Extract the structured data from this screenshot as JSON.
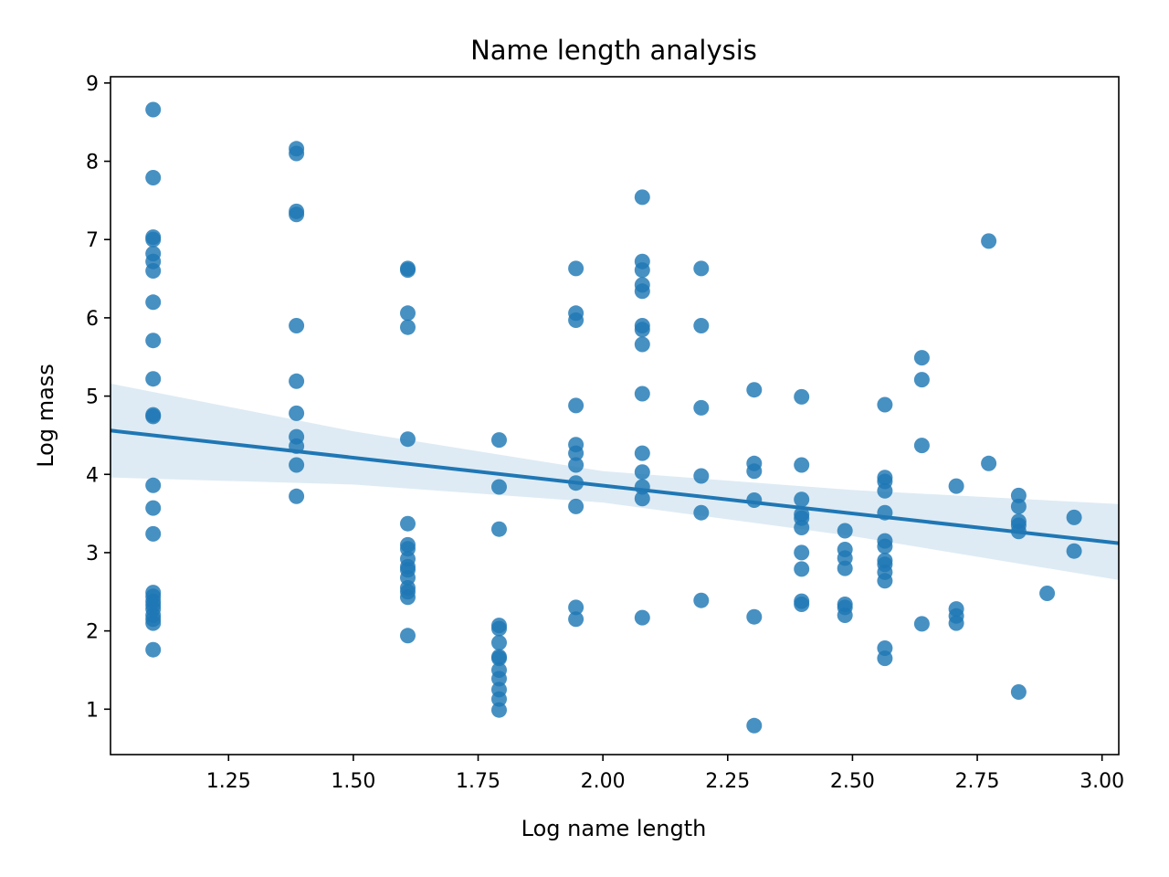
{
  "chart_data": {
    "type": "scatter",
    "title": "Name length analysis",
    "xlabel": "Log name length",
    "ylabel": "Log mass",
    "xlim": [
      1.0135,
      3.0335
    ],
    "ylim": [
      0.42,
      9.08
    ],
    "xticks": [
      "1.25",
      "1.50",
      "1.75",
      "2.00",
      "2.25",
      "2.50",
      "2.75",
      "3.00"
    ],
    "yticks": [
      "1",
      "2",
      "3",
      "4",
      "5",
      "6",
      "7",
      "8",
      "9"
    ],
    "grid": false,
    "colors": {
      "points": "#1f77b4",
      "line": "#1f77b4",
      "band": "#1f77b4"
    },
    "regression": {
      "x": [
        1.0135,
        3.0335
      ],
      "y": [
        4.56,
        3.12
      ]
    },
    "confidence_band": {
      "x": [
        1.0135,
        1.5,
        2.0,
        2.5,
        3.0335
      ],
      "upper": [
        5.16,
        4.55,
        4.04,
        3.8,
        3.62
      ],
      "lower": [
        3.96,
        3.87,
        3.64,
        3.21,
        2.65
      ]
    },
    "points": [
      [
        1.099,
        8.66
      ],
      [
        1.099,
        7.79
      ],
      [
        1.099,
        7.03
      ],
      [
        1.099,
        7.0
      ],
      [
        1.099,
        6.82
      ],
      [
        1.099,
        6.72
      ],
      [
        1.099,
        6.6
      ],
      [
        1.099,
        6.2
      ],
      [
        1.099,
        5.71
      ],
      [
        1.099,
        5.22
      ],
      [
        1.099,
        4.76
      ],
      [
        1.099,
        4.74
      ],
      [
        1.099,
        3.86
      ],
      [
        1.099,
        3.57
      ],
      [
        1.099,
        3.24
      ],
      [
        1.099,
        2.49
      ],
      [
        1.099,
        2.44
      ],
      [
        1.099,
        2.38
      ],
      [
        1.099,
        2.33
      ],
      [
        1.099,
        2.28
      ],
      [
        1.099,
        2.2
      ],
      [
        1.099,
        2.15
      ],
      [
        1.099,
        2.1
      ],
      [
        1.099,
        1.76
      ],
      [
        1.386,
        8.16
      ],
      [
        1.386,
        8.1
      ],
      [
        1.386,
        7.36
      ],
      [
        1.386,
        7.32
      ],
      [
        1.386,
        5.9
      ],
      [
        1.386,
        5.19
      ],
      [
        1.386,
        4.78
      ],
      [
        1.386,
        4.48
      ],
      [
        1.386,
        4.36
      ],
      [
        1.386,
        4.12
      ],
      [
        1.386,
        3.72
      ],
      [
        1.609,
        6.63
      ],
      [
        1.609,
        6.61
      ],
      [
        1.609,
        6.06
      ],
      [
        1.609,
        5.88
      ],
      [
        1.609,
        4.45
      ],
      [
        1.609,
        3.37
      ],
      [
        1.609,
        3.1
      ],
      [
        1.609,
        3.05
      ],
      [
        1.609,
        2.92
      ],
      [
        1.609,
        2.82
      ],
      [
        1.609,
        2.78
      ],
      [
        1.609,
        2.68
      ],
      [
        1.609,
        2.55
      ],
      [
        1.609,
        2.5
      ],
      [
        1.609,
        2.43
      ],
      [
        1.609,
        1.94
      ],
      [
        1.792,
        4.44
      ],
      [
        1.792,
        3.84
      ],
      [
        1.792,
        3.3
      ],
      [
        1.792,
        2.07
      ],
      [
        1.792,
        2.03
      ],
      [
        1.792,
        1.85
      ],
      [
        1.792,
        1.67
      ],
      [
        1.792,
        1.65
      ],
      [
        1.792,
        1.5
      ],
      [
        1.792,
        1.39
      ],
      [
        1.792,
        1.25
      ],
      [
        1.792,
        1.13
      ],
      [
        1.792,
        0.99
      ],
      [
        1.946,
        6.63
      ],
      [
        1.946,
        6.06
      ],
      [
        1.946,
        5.97
      ],
      [
        1.946,
        4.88
      ],
      [
        1.946,
        4.38
      ],
      [
        1.946,
        4.27
      ],
      [
        1.946,
        4.12
      ],
      [
        1.946,
        3.89
      ],
      [
        1.946,
        3.59
      ],
      [
        1.946,
        2.3
      ],
      [
        1.946,
        2.15
      ],
      [
        2.079,
        7.54
      ],
      [
        2.079,
        6.72
      ],
      [
        2.079,
        6.61
      ],
      [
        2.079,
        6.42
      ],
      [
        2.079,
        6.34
      ],
      [
        2.079,
        5.9
      ],
      [
        2.079,
        5.85
      ],
      [
        2.079,
        5.66
      ],
      [
        2.079,
        5.03
      ],
      [
        2.079,
        4.27
      ],
      [
        2.079,
        4.03
      ],
      [
        2.079,
        3.84
      ],
      [
        2.079,
        3.69
      ],
      [
        2.079,
        2.17
      ],
      [
        2.197,
        6.63
      ],
      [
        2.197,
        5.9
      ],
      [
        2.197,
        4.85
      ],
      [
        2.197,
        3.98
      ],
      [
        2.197,
        3.51
      ],
      [
        2.197,
        2.39
      ],
      [
        2.303,
        5.08
      ],
      [
        2.303,
        4.14
      ],
      [
        2.303,
        4.04
      ],
      [
        2.303,
        3.67
      ],
      [
        2.303,
        2.18
      ],
      [
        2.303,
        0.79
      ],
      [
        2.398,
        4.99
      ],
      [
        2.398,
        4.12
      ],
      [
        2.398,
        3.68
      ],
      [
        2.398,
        3.49
      ],
      [
        2.398,
        3.44
      ],
      [
        2.398,
        3.32
      ],
      [
        2.398,
        3.0
      ],
      [
        2.398,
        2.79
      ],
      [
        2.398,
        2.38
      ],
      [
        2.398,
        2.34
      ],
      [
        2.485,
        3.28
      ],
      [
        2.485,
        3.04
      ],
      [
        2.485,
        2.93
      ],
      [
        2.485,
        2.8
      ],
      [
        2.485,
        2.34
      ],
      [
        2.485,
        2.3
      ],
      [
        2.485,
        2.2
      ],
      [
        2.565,
        4.89
      ],
      [
        2.565,
        3.96
      ],
      [
        2.565,
        3.91
      ],
      [
        2.565,
        3.79
      ],
      [
        2.565,
        3.51
      ],
      [
        2.565,
        3.15
      ],
      [
        2.565,
        3.08
      ],
      [
        2.565,
        2.9
      ],
      [
        2.565,
        2.85
      ],
      [
        2.565,
        2.75
      ],
      [
        2.565,
        2.64
      ],
      [
        2.565,
        1.78
      ],
      [
        2.565,
        1.65
      ],
      [
        2.639,
        5.49
      ],
      [
        2.639,
        5.21
      ],
      [
        2.639,
        4.37
      ],
      [
        2.639,
        2.09
      ],
      [
        2.708,
        3.85
      ],
      [
        2.708,
        2.28
      ],
      [
        2.708,
        2.19
      ],
      [
        2.708,
        2.1
      ],
      [
        2.773,
        6.98
      ],
      [
        2.773,
        4.14
      ],
      [
        2.833,
        3.73
      ],
      [
        2.833,
        3.59
      ],
      [
        2.833,
        3.4
      ],
      [
        2.833,
        3.35
      ],
      [
        2.833,
        3.27
      ],
      [
        2.833,
        1.22
      ],
      [
        2.89,
        2.48
      ],
      [
        2.944,
        3.45
      ],
      [
        2.944,
        3.02
      ]
    ]
  }
}
